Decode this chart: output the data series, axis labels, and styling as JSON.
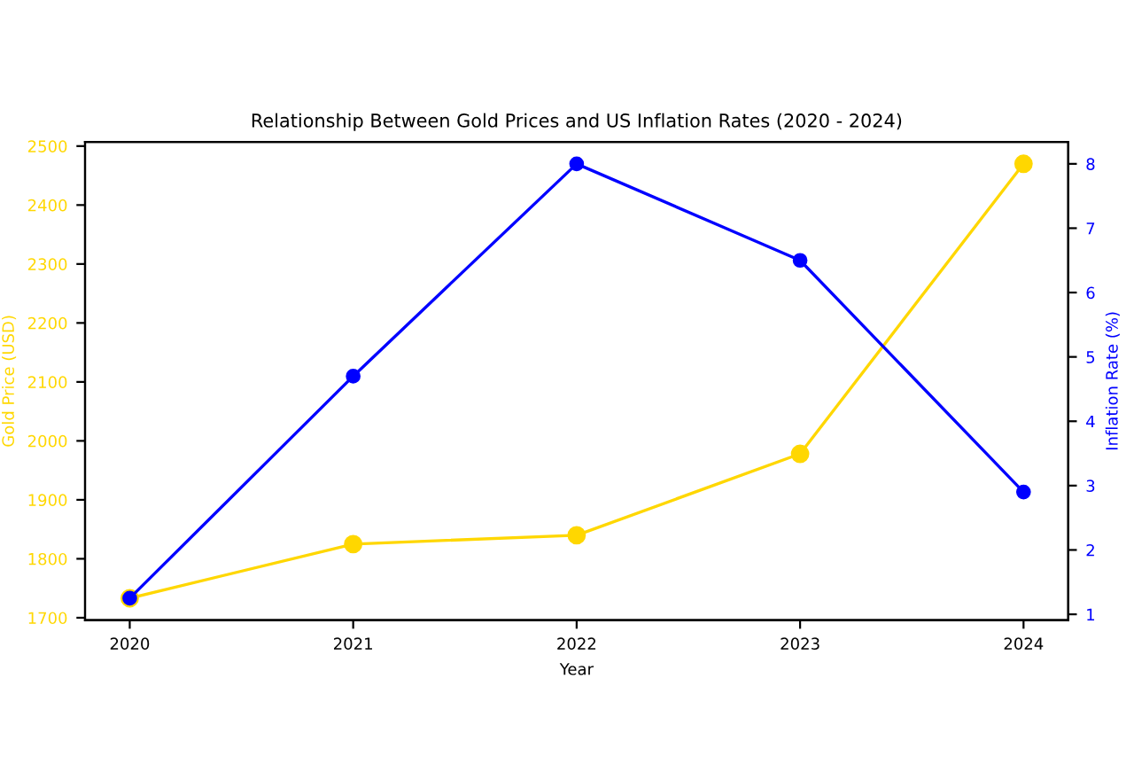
{
  "chart_data": {
    "type": "line",
    "title": "Relationship Between Gold Prices and US Inflation Rates (2020 - 2024)",
    "xlabel": "Year",
    "ylabel": "Gold Price (USD)",
    "y2label": "Inflation Rate (%)",
    "categories": [
      "2020",
      "2021",
      "2022",
      "2023",
      "2024"
    ],
    "series": [
      {
        "color": "#ffd700",
        "values": [
          1733,
          1825,
          1840,
          1978,
          2470
        ]
      },
      {
        "color": "#0000ff",
        "values": [
          1.25,
          4.7,
          8.0,
          6.5,
          2.9
        ],
        "axis": "y2"
      }
    ],
    "ylim": [
      1696,
      2507
    ],
    "yticks": [
      1700,
      1800,
      1900,
      2000,
      2100,
      2200,
      2300,
      2400,
      2500
    ],
    "y2lim": [
      0.91,
      8.34
    ],
    "y2ticks": [
      1,
      2,
      3,
      4,
      5,
      6,
      7,
      8
    ],
    "marker": "circle",
    "line_style": "solid",
    "grid": false,
    "legend": false
  }
}
